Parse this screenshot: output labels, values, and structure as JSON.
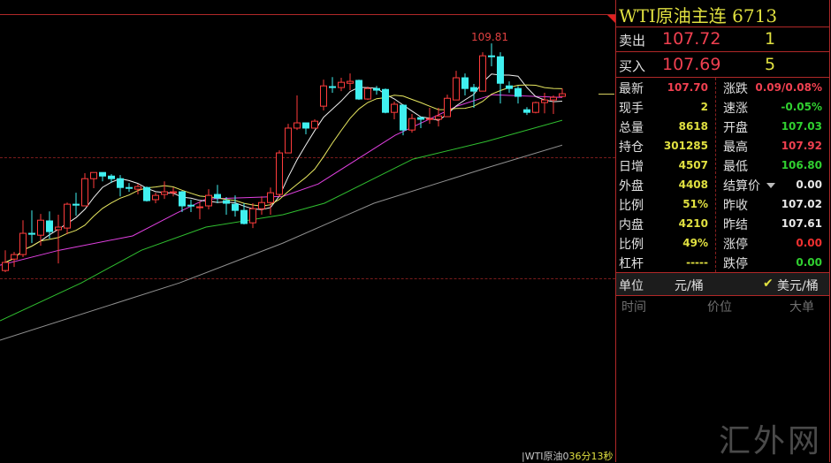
{
  "panel": {
    "title": "WTI原油主连",
    "code": "6713",
    "sell": {
      "label": "卖出",
      "price": "107.72",
      "qty": "1"
    },
    "buy": {
      "label": "买入",
      "price": "107.69",
      "qty": "5"
    },
    "stats": [
      {
        "l_label": "最新",
        "l_value": "107.70",
        "l_color": "#f04050",
        "r_label": "涨跌",
        "r_value": "0.09/0.08%",
        "r_color": "#f04050"
      },
      {
        "l_label": "现手",
        "l_value": "2",
        "l_color": "#e0e040",
        "r_label": "速涨",
        "r_value": "-0.05%",
        "r_color": "#30d030"
      },
      {
        "l_label": "总量",
        "l_value": "8618",
        "l_color": "#e0e040",
        "r_label": "开盘",
        "r_value": "107.03",
        "r_color": "#30d030"
      },
      {
        "l_label": "持仓",
        "l_value": "301285",
        "l_color": "#e0e040",
        "r_label": "最高",
        "r_value": "107.92",
        "r_color": "#f04050"
      },
      {
        "l_label": "日增",
        "l_value": "4507",
        "l_color": "#e0e040",
        "r_label": "最低",
        "r_value": "106.80",
        "r_color": "#30d030"
      },
      {
        "l_label": "外盘",
        "l_value": "4408",
        "l_color": "#e0e040",
        "r_label": "结算价",
        "r_value": "0.00",
        "r_color": "#e8e8e8"
      },
      {
        "l_label": "比例",
        "l_value": "51%",
        "l_color": "#e0e040",
        "r_label": "昨收",
        "r_value": "107.02",
        "r_color": "#e8e8e8"
      },
      {
        "l_label": "内盘",
        "l_value": "4210",
        "l_color": "#e0e040",
        "r_label": "昨结",
        "r_value": "107.61",
        "r_color": "#e8e8e8"
      },
      {
        "l_label": "比例",
        "l_value": "49%",
        "l_color": "#e0e040",
        "r_label": "涨停",
        "r_value": "0.00",
        "r_color": "#f03030"
      },
      {
        "l_label": "杠杆",
        "l_value": "-----",
        "l_color": "#e0e040",
        "r_label": "跌停",
        "r_value": "0.00",
        "r_color": "#30d030"
      }
    ],
    "unit": {
      "label": "单位",
      "option_cny": "元/桶",
      "option_usd": "美元/桶",
      "selected": "美元/桶",
      "check": "✔"
    },
    "trades_header": {
      "time": "时间",
      "price": "价位",
      "big": "大单"
    },
    "watermark": "汇外网"
  },
  "footer": {
    "symbol": "|WTI原油0",
    "countdown": "36分13秒"
  },
  "colors": {
    "up": "#ff3c3c",
    "down": "#40f0f0",
    "ma5": "#f0f0f0",
    "ma10": "#e8e860",
    "ma20": "#e040e0",
    "ma_green": "#30c030",
    "ma_grey": "#909090",
    "last": "#d8d060"
  },
  "chart_data": {
    "type": "candlestick",
    "title": "",
    "ylim": [
      92.37,
      111.63
    ],
    "grid": false,
    "high_label": "109.81",
    "last_price": 107.7,
    "candles_ohlc": [
      [
        100.29,
        101.14,
        100.22,
        100.63
      ],
      [
        100.77,
        101.07,
        100.44,
        100.96
      ],
      [
        100.96,
        102.4,
        100.85,
        101.85
      ],
      [
        101.85,
        102.81,
        101.44,
        101.81
      ],
      [
        101.77,
        102.66,
        101.33,
        102.4
      ],
      [
        102.37,
        102.77,
        101.63,
        101.92
      ],
      [
        102.0,
        102.63,
        100.59,
        102.11
      ],
      [
        102.07,
        103.14,
        101.81,
        103.07
      ],
      [
        103.07,
        103.55,
        102.59,
        103.03
      ],
      [
        103.0,
        104.37,
        103.0,
        104.14
      ],
      [
        104.14,
        104.4,
        103.74,
        104.4
      ],
      [
        104.4,
        104.4,
        104.03,
        104.25
      ],
      [
        104.25,
        104.33,
        103.96,
        104.14
      ],
      [
        104.14,
        104.29,
        103.4,
        103.77
      ],
      [
        103.77,
        103.96,
        103.59,
        103.74
      ],
      [
        103.7,
        103.92,
        103.48,
        103.81
      ],
      [
        103.77,
        103.81,
        103.18,
        103.22
      ],
      [
        103.26,
        103.55,
        103.11,
        103.44
      ],
      [
        103.48,
        104.03,
        103.29,
        103.59
      ],
      [
        103.55,
        103.77,
        103.4,
        103.59
      ],
      [
        103.59,
        103.63,
        102.74,
        103.0
      ],
      [
        103.03,
        103.26,
        102.74,
        103.0
      ],
      [
        102.94,
        103.18,
        102.44,
        102.96
      ],
      [
        103.0,
        103.7,
        102.85,
        103.44
      ],
      [
        103.48,
        103.88,
        103.11,
        103.33
      ],
      [
        103.22,
        103.37,
        102.63,
        103.11
      ],
      [
        103.07,
        103.44,
        102.55,
        102.81
      ],
      [
        102.81,
        103.11,
        102.22,
        102.26
      ],
      [
        102.29,
        103.11,
        102.07,
        102.88
      ],
      [
        102.88,
        103.4,
        102.63,
        103.14
      ],
      [
        103.14,
        103.77,
        102.63,
        103.55
      ],
      [
        103.48,
        105.33,
        103.37,
        105.22
      ],
      [
        105.22,
        106.44,
        105.22,
        106.26
      ],
      [
        106.26,
        107.63,
        106.18,
        106.48
      ],
      [
        106.48,
        106.48,
        106.0,
        106.26
      ],
      [
        106.26,
        106.63,
        106.26,
        106.55
      ],
      [
        107.18,
        108.29,
        107.0,
        108.03
      ],
      [
        108.0,
        108.4,
        107.74,
        107.96
      ],
      [
        107.96,
        108.37,
        107.81,
        108.18
      ],
      [
        108.14,
        108.55,
        107.85,
        108.22
      ],
      [
        108.26,
        108.29,
        107.44,
        107.48
      ],
      [
        107.48,
        108.0,
        107.44,
        107.92
      ],
      [
        107.92,
        108.03,
        107.66,
        107.85
      ],
      [
        107.88,
        107.92,
        106.88,
        106.92
      ],
      [
        106.92,
        107.37,
        106.63,
        107.26
      ],
      [
        107.22,
        107.26,
        105.96,
        106.18
      ],
      [
        106.18,
        106.85,
        106.07,
        106.66
      ],
      [
        106.7,
        106.74,
        106.26,
        106.63
      ],
      [
        106.64,
        107.11,
        106.44,
        106.66
      ],
      [
        106.63,
        107.11,
        106.33,
        106.77
      ],
      [
        106.74,
        107.66,
        106.74,
        107.51
      ],
      [
        107.44,
        108.66,
        107.44,
        108.37
      ],
      [
        108.37,
        108.55,
        107.63,
        107.92
      ],
      [
        107.96,
        108.11,
        107.11,
        107.81
      ],
      [
        107.81,
        109.44,
        107.81,
        109.29
      ],
      [
        109.29,
        109.81,
        108.85,
        109.25
      ],
      [
        109.25,
        109.44,
        107.29,
        108.14
      ],
      [
        108.03,
        108.22,
        107.74,
        107.92
      ],
      [
        107.92,
        108.03,
        107.29,
        107.59
      ],
      [
        107.03,
        107.14,
        106.81,
        106.92
      ],
      [
        106.92,
        107.37,
        106.88,
        107.33
      ],
      [
        107.33,
        107.74,
        106.88,
        107.44
      ],
      [
        107.44,
        107.63,
        106.85,
        107.55
      ],
      [
        107.59,
        107.92,
        107.55,
        107.7
      ]
    ],
    "ma_computed": [
      5,
      10
    ],
    "ma_series": [
      {
        "color_key": "ma20",
        "points": [
          [
            -0.6,
            100.51
          ],
          [
            6.1,
            101.14
          ],
          [
            14.4,
            101.74
          ],
          [
            19.4,
            102.7
          ],
          [
            22.7,
            103.29
          ],
          [
            31.4,
            103.4
          ],
          [
            35.4,
            103.92
          ],
          [
            44.1,
            105.96
          ],
          [
            51.1,
            107.18
          ],
          [
            55.1,
            107.66
          ],
          [
            63,
            107.55
          ]
        ]
      },
      {
        "color_key": "ma_green",
        "points": [
          [
            -0.6,
            98.18
          ],
          [
            8.6,
            99.77
          ],
          [
            15.4,
            101.14
          ],
          [
            22.7,
            102.11
          ],
          [
            31.4,
            102.63
          ],
          [
            36.1,
            103.11
          ],
          [
            46.1,
            104.96
          ],
          [
            54.4,
            105.7
          ],
          [
            63,
            106.59
          ]
        ]
      },
      {
        "color_key": "ma_grey",
        "points": [
          [
            -0.6,
            97.37
          ],
          [
            19.7,
            99.77
          ],
          [
            31.4,
            101.44
          ],
          [
            41.7,
            103.11
          ],
          [
            54.4,
            104.59
          ],
          [
            63,
            105.55
          ]
        ]
      }
    ]
  }
}
